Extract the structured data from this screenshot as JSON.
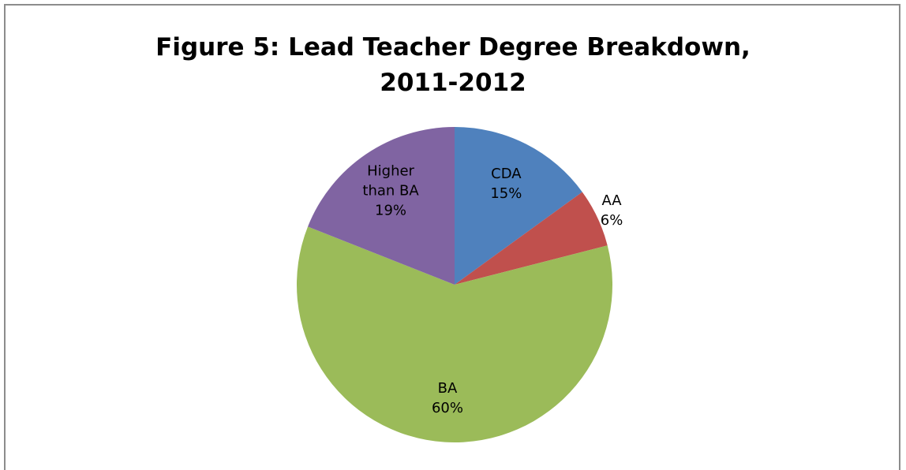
{
  "chart_data": {
    "type": "pie",
    "title": [
      "Figure 5: Lead Teacher Degree Breakdown,",
      "2011-2012"
    ],
    "categories": [
      "CDA",
      "AA",
      "BA",
      "Higher than BA"
    ],
    "values": [
      15,
      6,
      60,
      19
    ],
    "value_labels": [
      "15%",
      "6%",
      "60%",
      "19%"
    ],
    "colors": [
      "#4f81bd",
      "#c0504d",
      "#9bbb59",
      "#8064a2"
    ]
  }
}
